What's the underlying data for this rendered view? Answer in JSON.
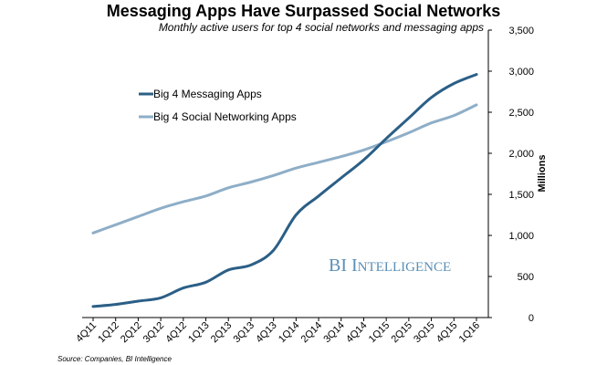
{
  "chart_data": {
    "type": "line",
    "title": "Messaging Apps Have Surpassed Social Networks",
    "subtitle": "Monthly active users for top 4 social networks and messaging apps",
    "ylabel": "Millions",
    "xlabel": "",
    "source": "Source: Companies, BI Intelligence",
    "watermark": {
      "big1": "BI ",
      "big2": "I",
      "small": "NTELLIGENCE"
    },
    "categories": [
      "4Q11",
      "1Q12",
      "2Q12",
      "3Q12",
      "4Q12",
      "1Q13",
      "2Q13",
      "3Q13",
      "4Q13",
      "1Q14",
      "2Q14",
      "3Q14",
      "4Q14",
      "1Q15",
      "2Q15",
      "3Q15",
      "4Q15",
      "1Q16"
    ],
    "ylim": [
      0,
      3500
    ],
    "yticks": [
      0,
      500,
      1000,
      1500,
      2000,
      2500,
      3000,
      3500
    ],
    "ytick_labels": [
      "0",
      "500",
      "1,000",
      "1,500",
      "2,000",
      "2,500",
      "3,000",
      "3,500"
    ],
    "grid": false,
    "legend_position": "upper-left",
    "series": [
      {
        "name": "Big 4 Messaging Apps",
        "color": "#2b5f86",
        "values": [
          135,
          160,
          200,
          240,
          360,
          430,
          580,
          640,
          820,
          1250,
          1480,
          1700,
          1920,
          2180,
          2430,
          2680,
          2850,
          2960
        ]
      },
      {
        "name": "Big 4 Social Networking Apps",
        "color": "#8eaec7",
        "values": [
          1030,
          1130,
          1230,
          1330,
          1410,
          1480,
          1580,
          1650,
          1730,
          1820,
          1890,
          1960,
          2040,
          2140,
          2250,
          2370,
          2460,
          2590
        ]
      }
    ]
  }
}
